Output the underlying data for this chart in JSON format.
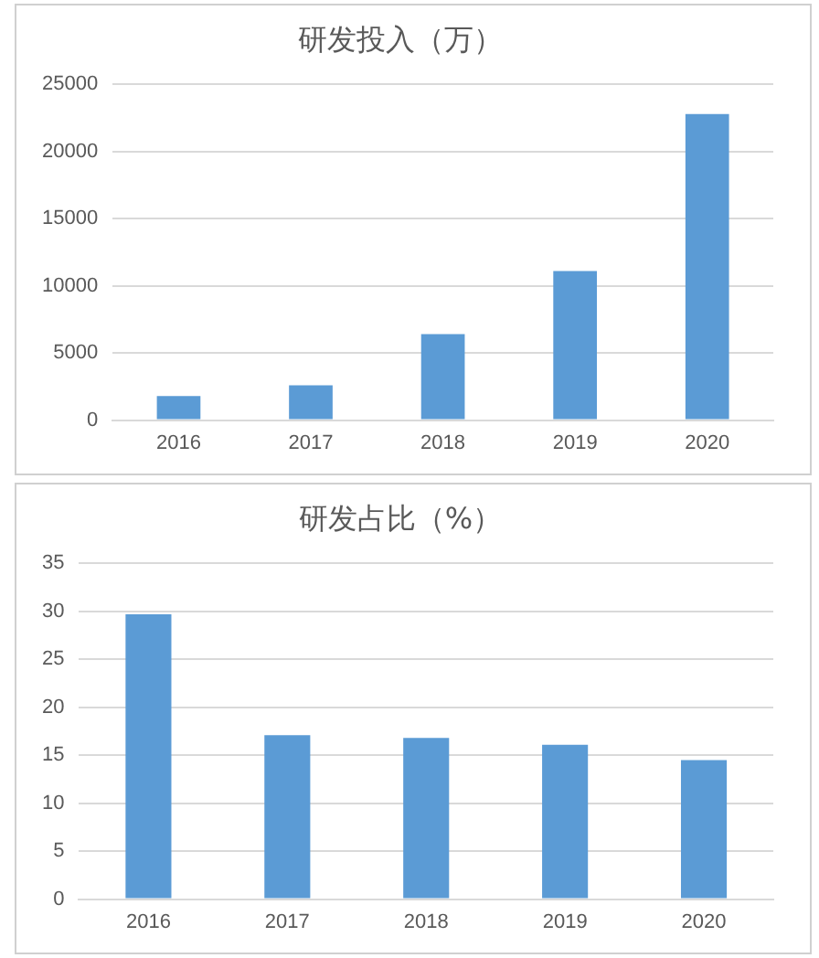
{
  "chart_data": [
    {
      "type": "bar",
      "title": "研发投入（万）",
      "categories": [
        "2016",
        "2017",
        "2018",
        "2019",
        "2020"
      ],
      "values": [
        1800,
        2600,
        6400,
        11100,
        22800
      ],
      "color": "#5b9bd5",
      "ylim": [
        0,
        25000
      ],
      "yticks": [
        0,
        5000,
        10000,
        15000,
        20000,
        25000
      ],
      "grid": "y",
      "legend": false
    },
    {
      "type": "bar",
      "title": "研发占比（%）",
      "categories": [
        "2016",
        "2017",
        "2018",
        "2019",
        "2020"
      ],
      "values": [
        29.7,
        17.1,
        16.8,
        16.1,
        14.5
      ],
      "color": "#5b9bd5",
      "ylim": [
        0,
        35
      ],
      "yticks": [
        0,
        5,
        10,
        15,
        20,
        25,
        30,
        35
      ],
      "grid": "y",
      "legend": false
    }
  ]
}
